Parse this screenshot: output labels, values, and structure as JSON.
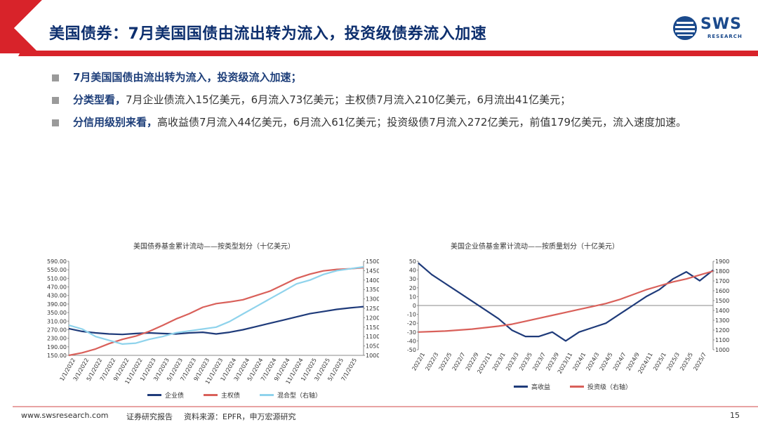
{
  "header": {
    "title": "美国债券：7月美国国债由流出转为流入，投资级债券流入加速",
    "logo_text": "SWS",
    "logo_sub": "RESEARCH",
    "colors": {
      "red": "#d8232a",
      "navy": "#0d2f6e"
    }
  },
  "bullets": [
    {
      "lead": "7月美国国债由流出转为流入，投资级流入加速；",
      "rest": ""
    },
    {
      "lead": "分类型看，",
      "rest": "7月企业债流入15亿美元，6月流入73亿美元；主权债7月流入210亿美元，6月流出41亿美元；"
    },
    {
      "lead": "分信用级别来看，",
      "rest": "高收益债7月流入44亿美元，6月流入61亿美元；投资级债7月流入272亿美元，前值179亿美元，流入速度加速。"
    }
  ],
  "chart_data": [
    {
      "type": "line",
      "title": "美国债券基金累计流动——按类型划分（十亿美元）",
      "left_axis_ticks": [
        "590.00",
        "550.00",
        "510.00",
        "470.00",
        "430.00",
        "390.00",
        "350.00",
        "310.00",
        "270.00",
        "230.00",
        "190.00",
        "150.00"
      ],
      "right_axis_ticks": [
        "1500.00",
        "1450.00",
        "1400.00",
        "1350.00",
        "1300.00",
        "1250.00",
        "1200.00",
        "1150.00",
        "1100.00",
        "1050.00",
        "1000.00"
      ],
      "ylim_left": [
        150,
        590
      ],
      "ylim_right": [
        1000,
        1500
      ],
      "x_ticks": [
        "1/1/2022",
        "3/1/2022",
        "5/1/2022",
        "7/1/2022",
        "9/1/2022",
        "11/1/2022",
        "1/1/2023",
        "3/1/2023",
        "5/1/2023",
        "7/1/2023",
        "9/1/2023",
        "11/1/2023",
        "1/1/2024",
        "3/1/2024",
        "5/1/2024",
        "7/1/2024",
        "9/1/2024",
        "11/1/2024",
        "1/1/2025",
        "3/1/2025",
        "5/1/2025",
        "7/1/2025"
      ],
      "series": [
        {
          "name": "企业债",
          "axis": "left",
          "color": "#1f3b7a",
          "values": [
            275,
            262,
            255,
            250,
            248,
            252,
            255,
            252,
            250,
            255,
            258,
            250,
            258,
            270,
            285,
            300,
            315,
            330,
            345,
            355,
            365,
            372,
            378
          ]
        },
        {
          "name": "主权债",
          "axis": "left",
          "color": "#d9605a",
          "values": [
            150,
            162,
            180,
            205,
            225,
            240,
            262,
            290,
            320,
            345,
            375,
            392,
            400,
            410,
            430,
            450,
            480,
            510,
            530,
            545,
            552,
            555,
            560
          ]
        },
        {
          "name": "混合型（右轴）",
          "axis": "right",
          "color": "#8fd3ec",
          "values": [
            1160,
            1140,
            1100,
            1080,
            1060,
            1065,
            1085,
            1100,
            1120,
            1130,
            1140,
            1150,
            1180,
            1220,
            1260,
            1300,
            1340,
            1380,
            1400,
            1430,
            1450,
            1460,
            1470
          ]
        }
      ]
    },
    {
      "type": "line",
      "title": "美国企业债基金累计流动——按质量划分（十亿美元）",
      "left_axis_ticks": [
        "50",
        "40",
        "30",
        "20",
        "10",
        "0",
        "-10",
        "-20",
        "-30",
        "-40",
        "-50"
      ],
      "right_axis_ticks": [
        "1900",
        "1800",
        "1700",
        "1600",
        "1500",
        "1400",
        "1300",
        "1200",
        "1100",
        "1000"
      ],
      "ylim_left": [
        -50,
        50
      ],
      "ylim_right": [
        1000,
        1900
      ],
      "x_ticks": [
        "2022/1",
        "2022/3",
        "2022/5",
        "2022/7",
        "2022/9",
        "2022/11",
        "2023/1",
        "2023/3",
        "2023/5",
        "2023/7",
        "2023/9",
        "2023/11",
        "2024/1",
        "2024/3",
        "2024/5",
        "2024/7",
        "2024/9",
        "2024/11",
        "2025/1",
        "2025/3",
        "2025/5",
        "2025/7"
      ],
      "series": [
        {
          "name": "高收益",
          "axis": "left",
          "color": "#1f3b7a",
          "values": [
            48,
            35,
            25,
            15,
            5,
            -5,
            -15,
            -28,
            -35,
            -35,
            -30,
            -40,
            -30,
            -25,
            -20,
            -10,
            0,
            10,
            18,
            30,
            38,
            28,
            40
          ]
        },
        {
          "name": "投资级（右轴）",
          "axis": "right",
          "color": "#d9605a",
          "values": [
            1180,
            1185,
            1190,
            1200,
            1210,
            1225,
            1240,
            1260,
            1290,
            1320,
            1350,
            1380,
            1410,
            1440,
            1470,
            1510,
            1560,
            1610,
            1650,
            1690,
            1720,
            1760,
            1800
          ]
        }
      ]
    }
  ],
  "footer": {
    "url": "www.swsresearch.com",
    "report_type": "证券研究报告",
    "source": "资料来源：EPFR，申万宏源研究",
    "page": "15"
  }
}
